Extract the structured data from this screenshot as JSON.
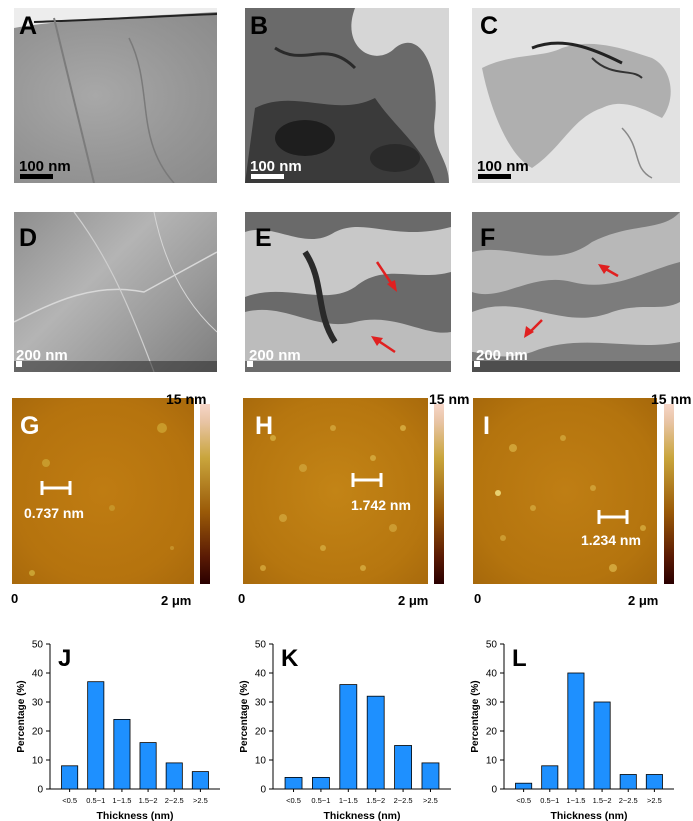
{
  "tem": [
    {
      "letter": "A",
      "scale": "100 nm"
    },
    {
      "letter": "B",
      "scale": "100 nm"
    },
    {
      "letter": "C",
      "scale": "100 nm"
    }
  ],
  "sem": [
    {
      "letter": "D",
      "scale": "200 nm"
    },
    {
      "letter": "E",
      "scale": "200 nm"
    },
    {
      "letter": "F",
      "scale": "200 nm"
    }
  ],
  "afm": [
    {
      "letter": "G",
      "top": "15 nm",
      "zero": "0",
      "width": "2 μm",
      "measure": "0.737 nm"
    },
    {
      "letter": "H",
      "top": "15 nm",
      "zero": "0",
      "width": "2 μm",
      "measure": "1.742 nm"
    },
    {
      "letter": "I",
      "top": "15 nm",
      "zero": "0",
      "width": "2 μm",
      "measure": "1.234 nm"
    }
  ],
  "colors": {
    "bar": "#1e90ff",
    "bar_edge": "#000000",
    "afm_base": "#b8760f",
    "arrow": "#e02020"
  },
  "chart_data": [
    {
      "type": "bar",
      "letter": "J",
      "categories": [
        "<0.5",
        "0.5~1",
        "1~1.5",
        "1.5~2",
        "2~2.5",
        ">2.5"
      ],
      "values": [
        8,
        37,
        24,
        16,
        9,
        6
      ],
      "xlabel": "Thickness (nm)",
      "ylabel": "Percentage (%)",
      "ylim": [
        0,
        50
      ],
      "yticks": [
        "0",
        "10",
        "20",
        "30",
        "40",
        "50"
      ]
    },
    {
      "type": "bar",
      "letter": "K",
      "categories": [
        "<0.5",
        "0.5~1",
        "1~1.5",
        "1.5~2",
        "2~2.5",
        ">2.5"
      ],
      "values": [
        4,
        4,
        36,
        32,
        15,
        9
      ],
      "xlabel": "Thickness (nm)",
      "ylabel": "Percentage (%)",
      "ylim": [
        0,
        50
      ],
      "yticks": [
        "0",
        "10",
        "20",
        "30",
        "40",
        "50"
      ]
    },
    {
      "type": "bar",
      "letter": "L",
      "categories": [
        "<0.5",
        "0.5~1",
        "1~1.5",
        "1.5~2",
        "2~2.5",
        ">2.5"
      ],
      "values": [
        2,
        8,
        40,
        30,
        5,
        5
      ],
      "xlabel": "Thickness (nm)",
      "ylabel": "Percentage (%)",
      "ylim": [
        0,
        50
      ],
      "yticks": [
        "0",
        "10",
        "20",
        "30",
        "40",
        "50"
      ]
    }
  ]
}
